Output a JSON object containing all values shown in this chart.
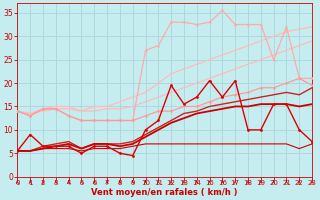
{
  "xlabel": "Vent moyen/en rafales ( km/h )",
  "xlim": [
    0,
    23
  ],
  "ylim": [
    0,
    37
  ],
  "yticks": [
    0,
    5,
    10,
    15,
    20,
    25,
    30,
    35
  ],
  "xticks": [
    0,
    1,
    2,
    3,
    4,
    5,
    6,
    7,
    8,
    9,
    10,
    11,
    12,
    13,
    14,
    15,
    16,
    17,
    18,
    19,
    20,
    21,
    22,
    23
  ],
  "bg_color": "#c5edf0",
  "grid_color": "#aad4d8",
  "tick_color": "#cc0000",
  "label_color": "#cc0000",
  "series": [
    {
      "x": [
        0,
        1,
        2,
        3,
        4,
        5,
        6,
        7,
        8,
        9,
        10,
        11,
        12,
        13,
        14,
        15,
        16,
        17,
        18,
        19,
        20,
        21,
        22,
        23
      ],
      "y": [
        14,
        13,
        14.5,
        14.5,
        13,
        12,
        12,
        12,
        12,
        12,
        27,
        28,
        33,
        33,
        32.5,
        33,
        35.5,
        32.5,
        32.5,
        32.5,
        25,
        32,
        21,
        21
      ],
      "color": "#ffaaaa",
      "lw": 0.9,
      "marker": "o",
      "ms": 1.8,
      "zorder": 3
    },
    {
      "x": [
        0,
        1,
        2,
        3,
        4,
        5,
        6,
        7,
        8,
        9,
        10,
        11,
        12,
        13,
        14,
        15,
        16,
        17,
        18,
        19,
        20,
        21,
        22,
        23
      ],
      "y": [
        14,
        13.5,
        14.5,
        15,
        15,
        14,
        15,
        15,
        16,
        17,
        18,
        20,
        22,
        23,
        24,
        25,
        26,
        27,
        28,
        29,
        30,
        31,
        31.5,
        32
      ],
      "color": "#ffbbbb",
      "lw": 0.9,
      "marker": null,
      "ms": 0,
      "zorder": 2
    },
    {
      "x": [
        0,
        1,
        2,
        3,
        4,
        5,
        6,
        7,
        8,
        9,
        10,
        11,
        12,
        13,
        14,
        15,
        16,
        17,
        18,
        19,
        20,
        21,
        22,
        23
      ],
      "y": [
        14,
        13,
        14.5,
        14.5,
        13,
        12,
        12,
        12,
        12,
        12,
        13,
        14,
        14,
        15,
        15,
        16,
        17,
        17.5,
        18,
        19,
        19,
        20,
        21,
        19.5
      ],
      "color": "#ff9999",
      "lw": 0.9,
      "marker": "o",
      "ms": 1.8,
      "zorder": 3
    },
    {
      "x": [
        0,
        1,
        2,
        3,
        4,
        5,
        6,
        7,
        8,
        9,
        10,
        11,
        12,
        13,
        14,
        15,
        16,
        17,
        18,
        19,
        20,
        21,
        22,
        23
      ],
      "y": [
        14,
        13.5,
        14,
        14.5,
        14.5,
        14,
        14,
        14.5,
        14.5,
        15,
        16,
        17,
        18,
        19,
        20,
        21,
        22,
        23,
        24,
        25,
        26,
        27,
        28,
        29
      ],
      "color": "#ffbbbb",
      "lw": 0.9,
      "marker": null,
      "ms": 0,
      "zorder": 2
    },
    {
      "x": [
        0,
        1,
        2,
        3,
        4,
        5,
        6,
        7,
        8,
        9,
        10,
        11,
        12,
        13,
        14,
        15,
        16,
        17,
        18,
        19,
        20,
        21,
        22,
        23
      ],
      "y": [
        5.5,
        9,
        6.5,
        6.5,
        6.5,
        5,
        6.5,
        6.5,
        5,
        4.5,
        10,
        12,
        19.5,
        15.5,
        17,
        20.5,
        17,
        20.5,
        10,
        10,
        15.5,
        15.5,
        10,
        7.5
      ],
      "color": "#dd0000",
      "lw": 1.0,
      "marker": "o",
      "ms": 2.0,
      "zorder": 5
    },
    {
      "x": [
        0,
        1,
        2,
        3,
        4,
        5,
        6,
        7,
        8,
        9,
        10,
        11,
        12,
        13,
        14,
        15,
        16,
        17,
        18,
        19,
        20,
        21,
        22,
        23
      ],
      "y": [
        5.5,
        5.5,
        6,
        6,
        6,
        5.5,
        6,
        6,
        6,
        6.5,
        7,
        7,
        7,
        7,
        7,
        7,
        7,
        7,
        7,
        7,
        7,
        7,
        6,
        7
      ],
      "color": "#cc0000",
      "lw": 0.8,
      "marker": null,
      "ms": 0,
      "zorder": 4
    },
    {
      "x": [
        0,
        1,
        2,
        3,
        4,
        5,
        6,
        7,
        8,
        9,
        10,
        11,
        12,
        13,
        14,
        15,
        16,
        17,
        18,
        19,
        20,
        21,
        22,
        23
      ],
      "y": [
        5.5,
        5.5,
        6,
        6.5,
        7,
        6,
        7,
        7,
        6.5,
        7,
        8.5,
        10,
        11.5,
        12.5,
        13.5,
        14,
        14.5,
        15,
        15,
        15.5,
        15.5,
        15.5,
        15,
        15.5
      ],
      "color": "#cc0000",
      "lw": 1.3,
      "marker": null,
      "ms": 0,
      "zorder": 4
    },
    {
      "x": [
        0,
        1,
        2,
        3,
        4,
        5,
        6,
        7,
        8,
        9,
        10,
        11,
        12,
        13,
        14,
        15,
        16,
        17,
        18,
        19,
        20,
        21,
        22,
        23
      ],
      "y": [
        5.5,
        5.5,
        6.5,
        7,
        7.5,
        6,
        7,
        7,
        7,
        7.5,
        9,
        10.5,
        12,
        13.5,
        14,
        15,
        15.5,
        16,
        16.5,
        17,
        17.5,
        18,
        17.5,
        19
      ],
      "color": "#cc2222",
      "lw": 1.0,
      "marker": null,
      "ms": 0,
      "zorder": 3
    }
  ],
  "arrow_color": "#cc0000"
}
